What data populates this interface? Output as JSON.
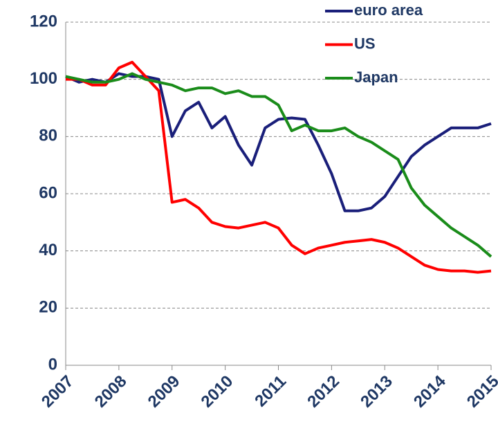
{
  "chart_data": {
    "type": "line",
    "x": [
      2007,
      2007.25,
      2007.5,
      2007.75,
      2008,
      2008.25,
      2008.5,
      2008.75,
      2009,
      2009.25,
      2009.5,
      2009.75,
      2010,
      2010.25,
      2010.5,
      2010.75,
      2011,
      2011.25,
      2011.5,
      2011.75,
      2012,
      2012.25,
      2012.5,
      2012.75,
      2013,
      2013.25,
      2013.5,
      2013.75,
      2014,
      2014.25,
      2014.5,
      2014.75,
      2015
    ],
    "series": [
      {
        "name": "euro area",
        "color": "#1a1f7a",
        "values": [
          101,
          99,
          100,
          99,
          102,
          101,
          101,
          100,
          80,
          89,
          92,
          83,
          87,
          77,
          70,
          83,
          86,
          86.5,
          86,
          77,
          67,
          54,
          54,
          55,
          59,
          66,
          73,
          77,
          80,
          83,
          83,
          83,
          84.5
        ]
      },
      {
        "name": "US",
        "color": "#ff0000",
        "values": [
          100,
          100,
          98,
          98,
          104,
          106,
          101,
          96,
          57,
          58,
          55,
          50,
          48.5,
          48,
          49,
          50,
          48,
          42,
          39,
          41,
          42,
          43,
          43.5,
          44,
          43,
          41,
          38,
          35,
          33.5,
          33,
          33,
          32.5,
          33
        ]
      },
      {
        "name": "Japan",
        "color": "#1a8c1a",
        "values": [
          101,
          100,
          99,
          99,
          100,
          102,
          100,
          99,
          98,
          96,
          97,
          97,
          95,
          96,
          94,
          94,
          91,
          82,
          84,
          82,
          82,
          83,
          80,
          78,
          75,
          72,
          62,
          56,
          52,
          48,
          45,
          42,
          38
        ]
      }
    ],
    "xlim": [
      2007,
      2015
    ],
    "xticks": [
      2007,
      2008,
      2009,
      2010,
      2011,
      2012,
      2013,
      2014,
      2015
    ],
    "ylim": [
      0,
      120
    ],
    "yticks": [
      0,
      20,
      40,
      60,
      80,
      100,
      120
    ],
    "grid": true
  }
}
